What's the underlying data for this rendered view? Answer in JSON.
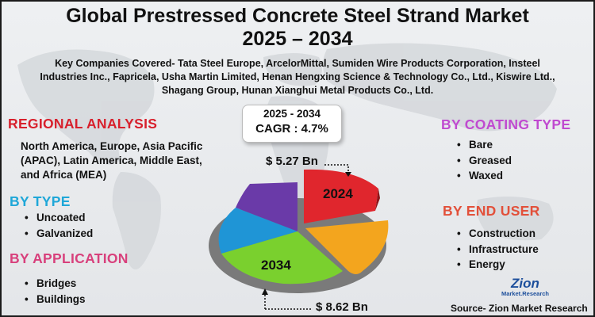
{
  "header": {
    "title_line1": "Global Prestressed Concrete Steel Strand Market",
    "title_line2": "2025 – 2034",
    "companies_text": "Key Companies Covered- Tata Steel Europe, ArcelorMittal, Sumiden Wire Products Corporation, Insteel Industries Inc., Fapricela, Usha Martin Limited, Henan Hengxing Science & Technology Co., Ltd., Kiswire Ltd., Shagang Group, Hunan Xianghui Metal Products Co., Ltd."
  },
  "cagr": {
    "period": "2025 - 2034",
    "value": "CAGR : 4.7%"
  },
  "regional": {
    "title": "REGIONAL ANALYSIS",
    "text": "North America, Europe, Asia Pacific (APAC), Latin America, Middle East, and Africa (MEA)"
  },
  "by_type": {
    "title": "BY TYPE",
    "items": [
      "Uncoated",
      "Galvanized"
    ]
  },
  "by_application": {
    "title": "BY APPLICATION",
    "items": [
      "Bridges",
      "Buildings"
    ]
  },
  "by_coating": {
    "title": "BY COATING TYPE",
    "items": [
      "Bare",
      "Greased",
      "Waxed"
    ]
  },
  "by_end_user": {
    "title": "BY END USER",
    "items": [
      "Construction",
      "Infrastructure",
      "Energy"
    ]
  },
  "pie": {
    "start_value": "$ 5.27 Bn",
    "end_value": "$ 8.62 Bn",
    "label_2024": "2024",
    "label_2034": "2034"
  },
  "logo": {
    "main": "Zion",
    "sub": "Market.Research"
  },
  "source": "Source- Zion Market Research",
  "colors": {
    "regional": "#d8202c",
    "by_type": "#1ea7d8",
    "by_application": "#d8407c",
    "by_coating": "#c04ad0",
    "by_end_user": "#e2503a"
  }
}
